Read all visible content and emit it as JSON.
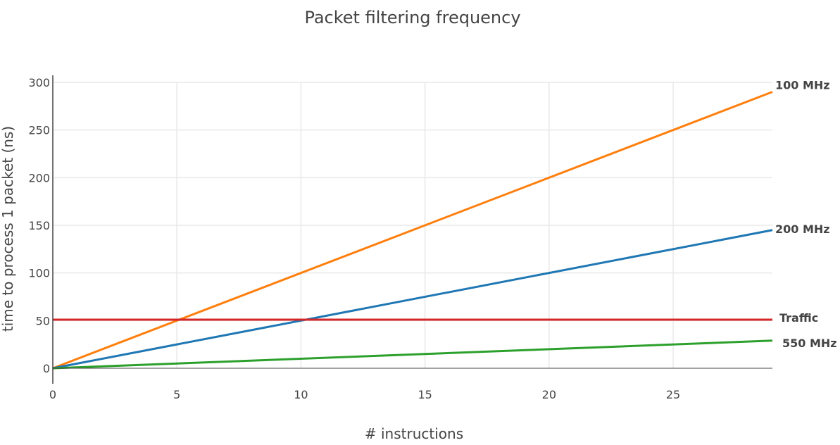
{
  "chart_data": {
    "type": "line",
    "title": "Packet filtering frequency",
    "xlabel": "# instructions",
    "ylabel": "time to process 1 packet (ns)",
    "xlim": [
      0,
      29
    ],
    "ylim": [
      0,
      300
    ],
    "x_ticks": [
      0,
      5,
      10,
      15,
      20,
      25
    ],
    "y_ticks": [
      0,
      50,
      100,
      150,
      200,
      250,
      300
    ],
    "grid": true,
    "legend": "none (series labeled at right end of lines)",
    "series": [
      {
        "name": "100 MHz",
        "color": "#ff7f0e",
        "x": [
          0,
          29
        ],
        "y": [
          0,
          290
        ]
      },
      {
        "name": "200 MHz",
        "color": "#1f77b4",
        "x": [
          0,
          29
        ],
        "y": [
          0,
          145
        ]
      },
      {
        "name": "Traffic",
        "color": "#d62728",
        "x": [
          0,
          29
        ],
        "y": [
          51,
          51
        ]
      },
      {
        "name": "550 MHz",
        "color": "#2ca02c",
        "x": [
          0,
          29
        ],
        "y": [
          0,
          29
        ]
      }
    ]
  }
}
